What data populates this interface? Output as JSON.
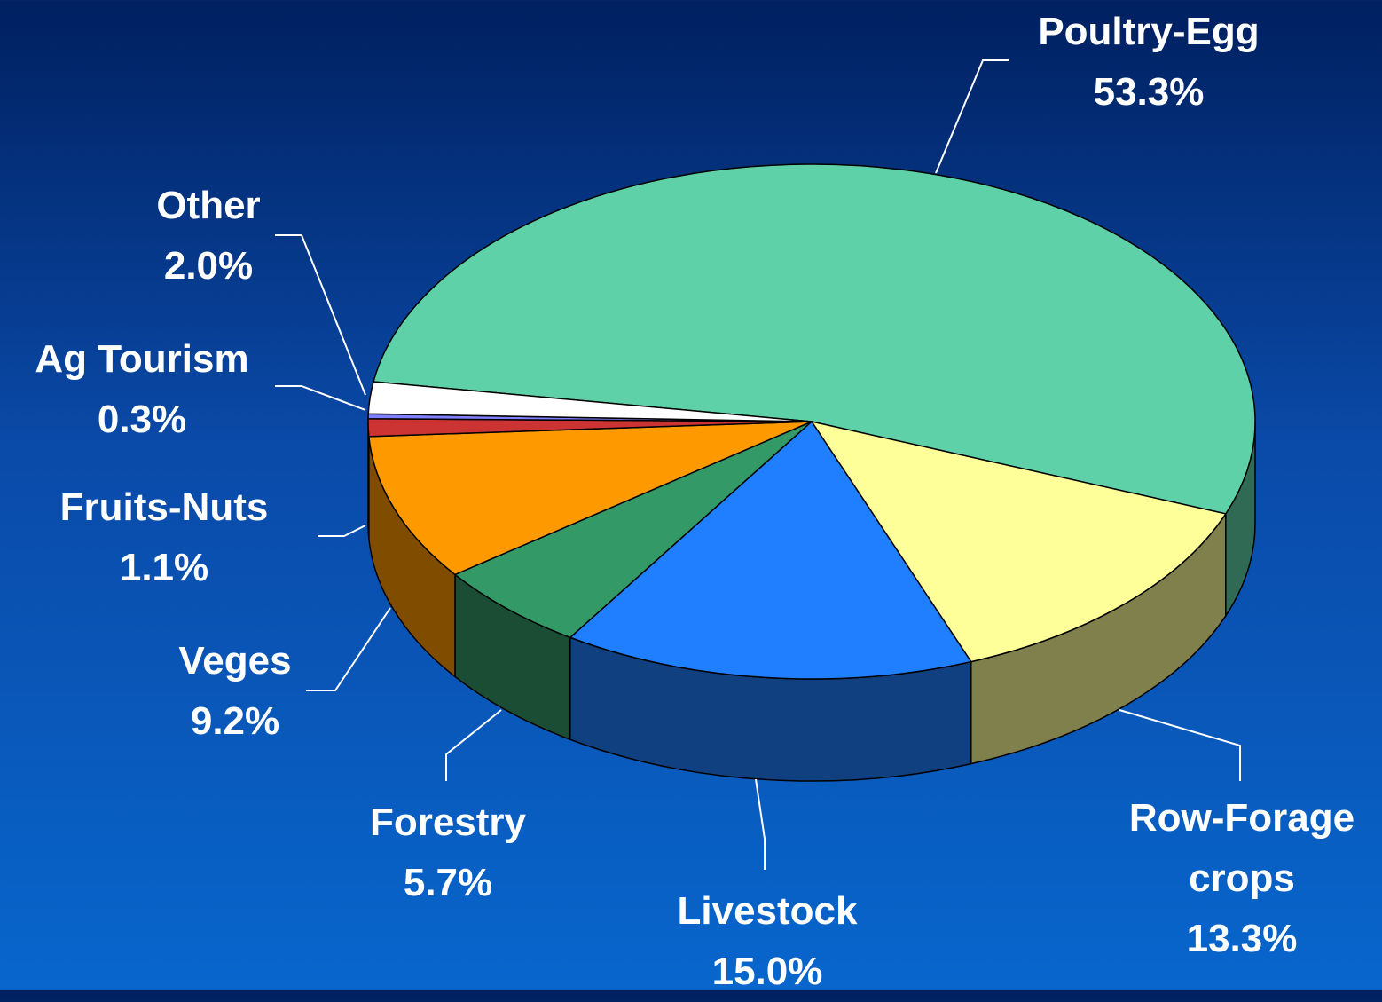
{
  "chart_data": {
    "type": "pie",
    "categories": [
      "Poultry-Egg",
      "Row-Forage crops",
      "Livestock",
      "Forestry",
      "Veges",
      "Fruits-Nuts",
      "Ag Tourism",
      "Other"
    ],
    "values": [
      53.3,
      13.3,
      15.0,
      5.7,
      9.2,
      1.1,
      0.3,
      2.0
    ],
    "value_labels": [
      "53.3%",
      "13.3%",
      "15.0%",
      "5.7%",
      "9.2%",
      "1.1%",
      "0.3%",
      "2.0%"
    ],
    "colors": [
      "#5fd1a8",
      "#ffff99",
      "#1f7fff",
      "#339966",
      "#ff9900",
      "#cc3333",
      "#8080ff",
      "#ffffff"
    ]
  }
}
